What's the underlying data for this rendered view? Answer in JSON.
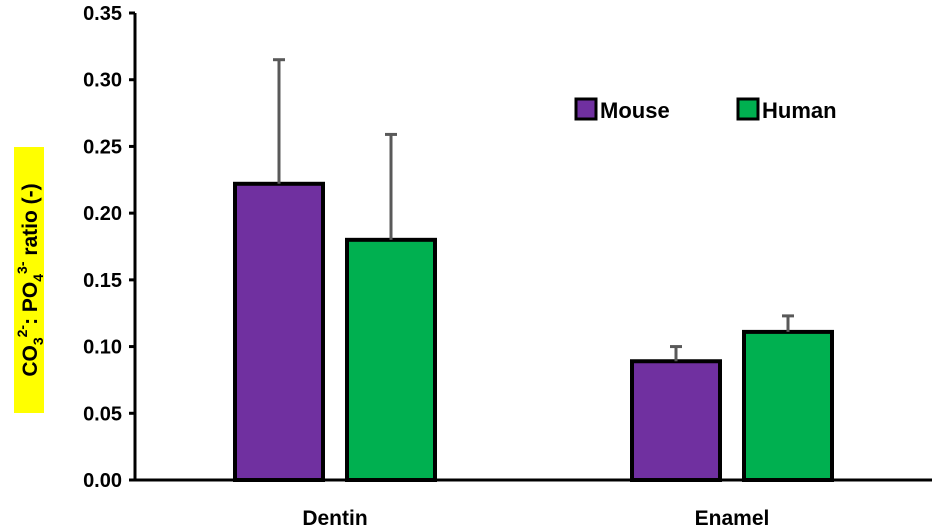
{
  "chart_data": {
    "type": "bar",
    "categories": [
      "Dentin",
      "Enamel"
    ],
    "series": [
      {
        "name": "Mouse",
        "values": [
          0.222,
          0.089
        ],
        "errors": [
          0.093,
          0.011
        ],
        "color": "#7030a0"
      },
      {
        "name": "Human",
        "values": [
          0.18,
          0.111
        ],
        "errors": [
          0.079,
          0.012
        ],
        "color": "#00b050"
      }
    ],
    "ylim": [
      0,
      0.35
    ],
    "yticks": [
      "0.00",
      "0.05",
      "0.10",
      "0.15",
      "0.20",
      "0.25",
      "0.30",
      "0.35"
    ],
    "ylabel": {
      "parts": [
        "CO",
        "3",
        "2-",
        ": PO",
        "4",
        "3-",
        " ratio (-)"
      ]
    },
    "ylabel_highlight_color": "#ffff00",
    "error_bar_color": "#595959",
    "legend_position": "top-right",
    "grid": false
  }
}
